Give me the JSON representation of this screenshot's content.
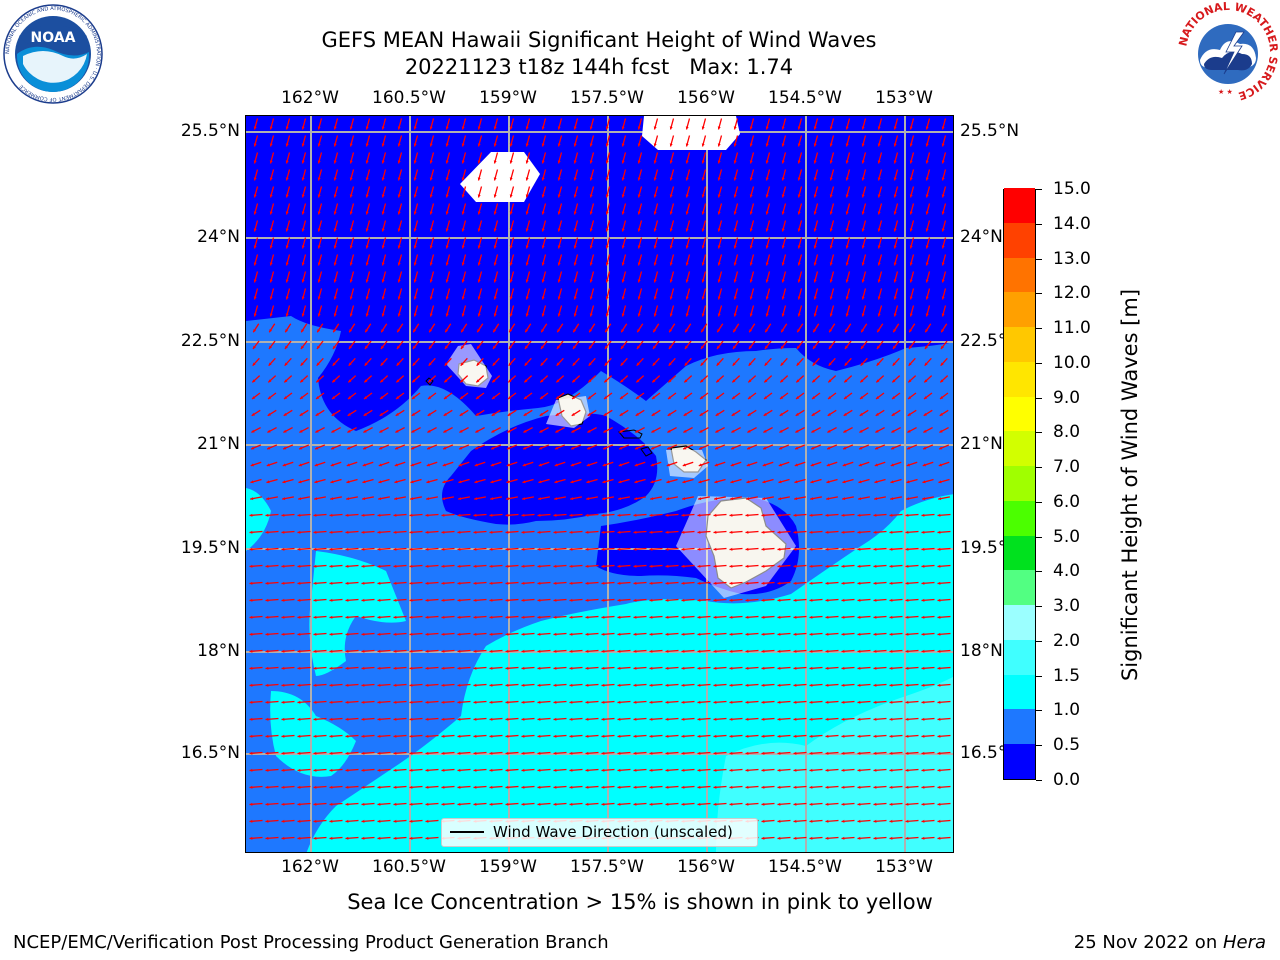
{
  "header": {
    "title_line1": "GEFS MEAN Hawaii Significant Height of Wind Waves",
    "title_line2": "20221123 t18z 144h fcst   Max: 1.74"
  },
  "logos": {
    "noaa_text": "NOAA",
    "noaa_ring_text": "NATIONAL OCEANIC AND ATMOSPHERIC ADMINISTRATION · U.S. DEPARTMENT OF COMMERCE",
    "nws_ring_text": "NATIONAL WEATHER SERVICE"
  },
  "map": {
    "lon_ticks": [
      "162°W",
      "160.5°W",
      "159°W",
      "157.5°W",
      "156°W",
      "154.5°W",
      "153°W"
    ],
    "lat_ticks": [
      "25.5°N",
      "24°N",
      "22.5°N",
      "21°N",
      "19.5°N",
      "18°N",
      "16.5°N"
    ],
    "colors": {
      "band_0": "#0000ff",
      "band_05": "#1e78ff",
      "band_15": "#00ffff",
      "land": "#efebdc",
      "arrow": "#ff0000",
      "grid": "#b0b0b0"
    }
  },
  "legend": {
    "label": "Wind Wave Direction (unscaled)"
  },
  "colorbar": {
    "label": "Significant Height of Wind Waves [m]",
    "ticks": [
      "0.0",
      "0.5",
      "1.0",
      "1.5",
      "2.0",
      "3.0",
      "4.0",
      "5.0",
      "6.0",
      "7.0",
      "8.0",
      "9.0",
      "10.0",
      "11.0",
      "12.0",
      "13.0",
      "14.0",
      "15.0"
    ],
    "colors": [
      "#0000ff",
      "#1e78ff",
      "#00ffff",
      "#40ffff",
      "#9bffff",
      "#52ff82",
      "#00e11e",
      "#4bff00",
      "#a0ff00",
      "#d2ff00",
      "#ffff00",
      "#ffe600",
      "#ffc800",
      "#ffa000",
      "#ff7300",
      "#ff4100",
      "#ff0000"
    ]
  },
  "footnote": "Sea Ice Concentration > 15% is shown in pink to yellow",
  "footer": {
    "left": "NCEP/EMC/Verification Post Processing Product Generation Branch",
    "right_prefix": "25 Nov 2022 on ",
    "right_host": "Hera"
  }
}
